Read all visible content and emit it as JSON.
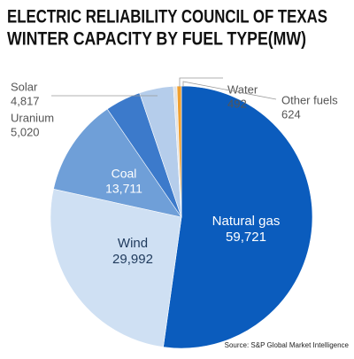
{
  "chart_data": {
    "type": "pie",
    "title": [
      "ELECTRIC RELIABILITY COUNCIL OF TEXAS",
      "WINTER CAPACITY BY FUEL TYPE(MW)"
    ],
    "categories": [
      "Natural gas",
      "Wind",
      "Coal",
      "Uranium",
      "Solar",
      "Water",
      "Other fuels"
    ],
    "values": [
      59721,
      29992,
      13711,
      5020,
      4817,
      492,
      624
    ],
    "value_labels": [
      "59,721",
      "29,992",
      "13,711",
      "5,020",
      "4,817",
      "492",
      "624"
    ],
    "colors": [
      "#0b5cbd",
      "#cfe0f3",
      "#6f9fd8",
      "#3c7acb",
      "#b5cdeb",
      "#e4e4e4",
      "#f0a030"
    ],
    "source": "Source: S&P Global Market Intelligence"
  }
}
